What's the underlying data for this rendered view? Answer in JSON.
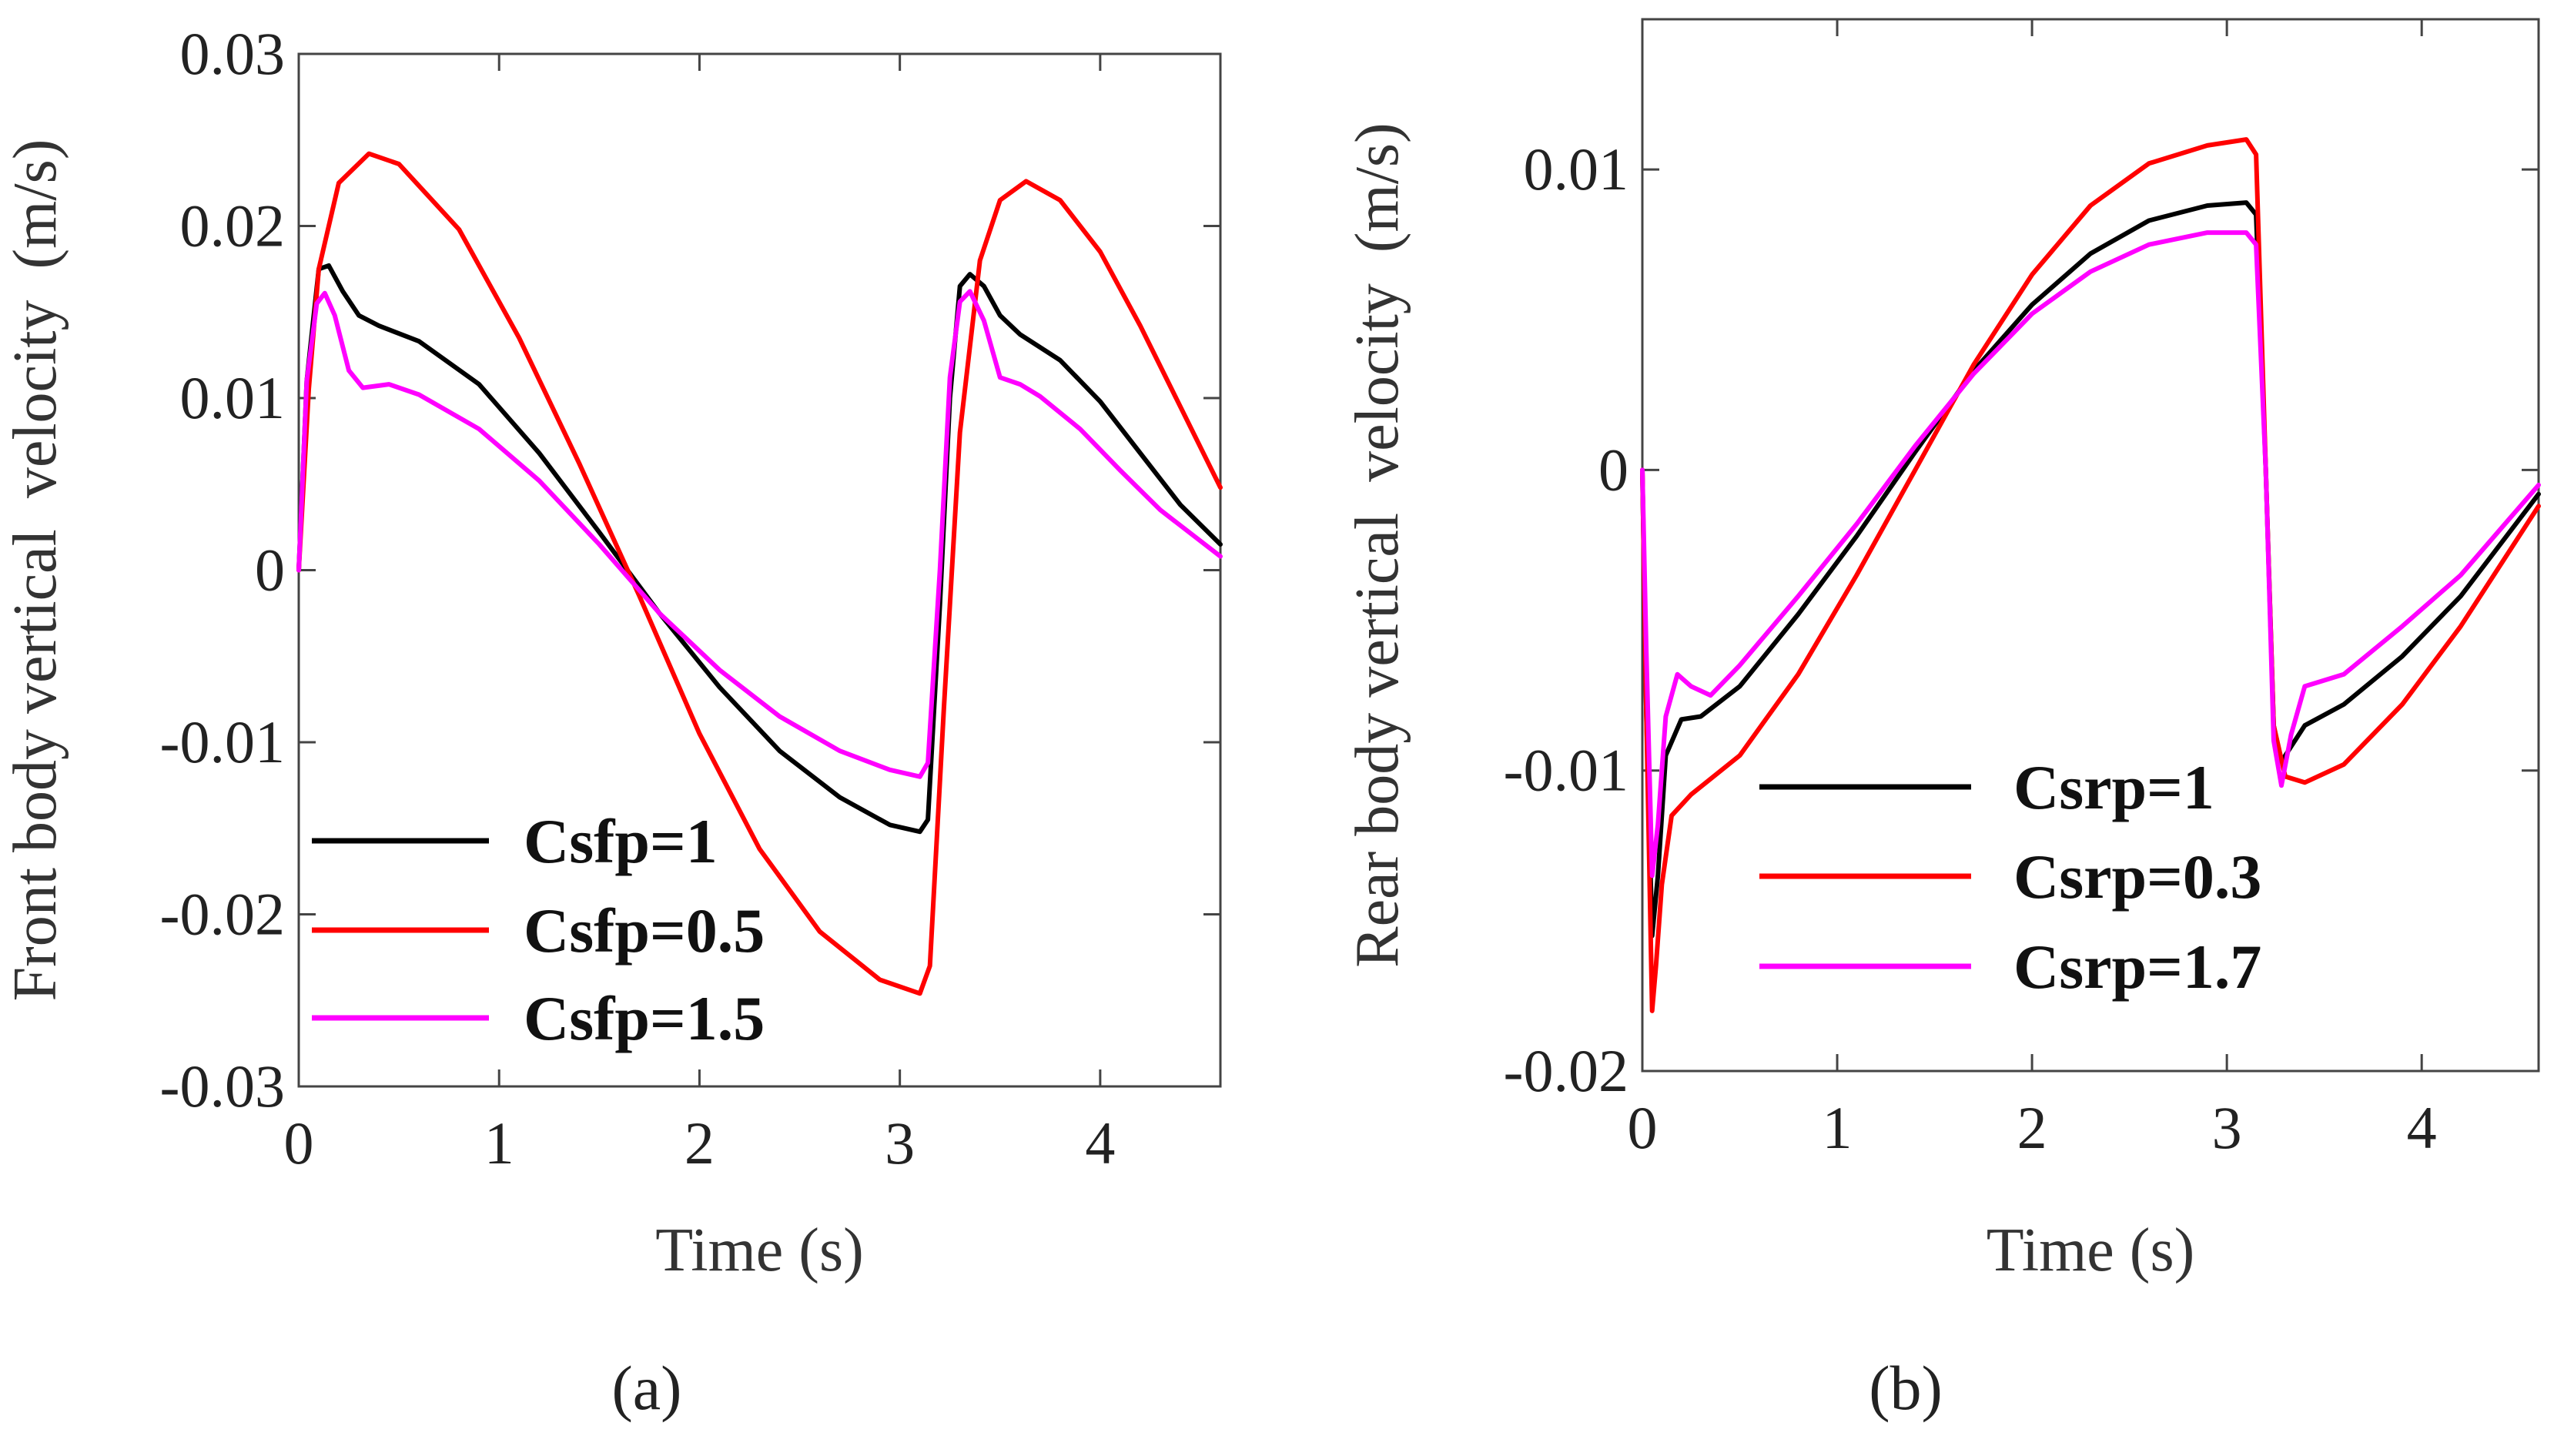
{
  "chart_data": [
    {
      "type": "line",
      "panel_label": "(a)",
      "title": "",
      "xlabel": "Time (s)",
      "ylabel": "Front body vertical  velocity  (m/s)",
      "xlim": [
        0,
        4.6
      ],
      "ylim": [
        -0.03,
        0.03
      ],
      "xticks": [
        0,
        1,
        2,
        3,
        4
      ],
      "xtick_labels": [
        "0",
        "1",
        "2",
        "3",
        "4"
      ],
      "yticks": [
        0.03,
        0.02,
        0.01,
        0,
        -0.01,
        -0.02,
        -0.03
      ],
      "ytick_labels": [
        "0.03",
        "0.02",
        "0.01",
        "0",
        "-0.01",
        "-0.02",
        "-0.03"
      ],
      "legend_position": "bottom-left",
      "series": [
        {
          "name": "Csfp=1",
          "color": "#000000",
          "points": [
            [
              0,
              0
            ],
            [
              0.04,
              0.011
            ],
            [
              0.1,
              0.0175
            ],
            [
              0.15,
              0.0177
            ],
            [
              0.22,
              0.0162
            ],
            [
              0.3,
              0.0148
            ],
            [
              0.4,
              0.0142
            ],
            [
              0.6,
              0.0133
            ],
            [
              0.9,
              0.0108
            ],
            [
              1.2,
              0.0068
            ],
            [
              1.5,
              0.0022
            ],
            [
              1.8,
              -0.0025
            ],
            [
              2.1,
              -0.0068
            ],
            [
              2.4,
              -0.0105
            ],
            [
              2.7,
              -0.0132
            ],
            [
              2.95,
              -0.0148
            ],
            [
              3.1,
              -0.0152
            ],
            [
              3.14,
              -0.0145
            ],
            [
              3.2,
              -0.002
            ],
            [
              3.25,
              0.01
            ],
            [
              3.3,
              0.0165
            ],
            [
              3.35,
              0.0172
            ],
            [
              3.42,
              0.0165
            ],
            [
              3.5,
              0.0148
            ],
            [
              3.6,
              0.0137
            ],
            [
              3.8,
              0.0122
            ],
            [
              4.0,
              0.0098
            ],
            [
              4.2,
              0.0068
            ],
            [
              4.4,
              0.0038
            ],
            [
              4.6,
              0.0015
            ]
          ]
        },
        {
          "name": "Csfp=0.5",
          "color": "#ff0000",
          "points": [
            [
              0,
              0
            ],
            [
              0.05,
              0.0105
            ],
            [
              0.1,
              0.0175
            ],
            [
              0.2,
              0.0225
            ],
            [
              0.35,
              0.0242
            ],
            [
              0.5,
              0.0236
            ],
            [
              0.8,
              0.0198
            ],
            [
              1.1,
              0.0135
            ],
            [
              1.4,
              0.0062
            ],
            [
              1.7,
              -0.0015
            ],
            [
              2.0,
              -0.0095
            ],
            [
              2.3,
              -0.0162
            ],
            [
              2.6,
              -0.021
            ],
            [
              2.9,
              -0.0238
            ],
            [
              3.1,
              -0.0246
            ],
            [
              3.15,
              -0.023
            ],
            [
              3.22,
              -0.008
            ],
            [
              3.3,
              0.008
            ],
            [
              3.4,
              0.018
            ],
            [
              3.5,
              0.0215
            ],
            [
              3.63,
              0.0226
            ],
            [
              3.8,
              0.0215
            ],
            [
              4.0,
              0.0185
            ],
            [
              4.2,
              0.0142
            ],
            [
              4.4,
              0.0095
            ],
            [
              4.6,
              0.0048
            ]
          ]
        },
        {
          "name": "Csfp=1.5",
          "color": "#ff00ff",
          "points": [
            [
              0,
              0
            ],
            [
              0.04,
              0.011
            ],
            [
              0.09,
              0.0155
            ],
            [
              0.13,
              0.0161
            ],
            [
              0.18,
              0.0148
            ],
            [
              0.25,
              0.0116
            ],
            [
              0.32,
              0.0106
            ],
            [
              0.45,
              0.0108
            ],
            [
              0.6,
              0.0102
            ],
            [
              0.9,
              0.0082
            ],
            [
              1.2,
              0.0052
            ],
            [
              1.5,
              0.0015
            ],
            [
              1.8,
              -0.0025
            ],
            [
              2.1,
              -0.0058
            ],
            [
              2.4,
              -0.0085
            ],
            [
              2.7,
              -0.0105
            ],
            [
              2.95,
              -0.0116
            ],
            [
              3.1,
              -0.012
            ],
            [
              3.14,
              -0.0112
            ],
            [
              3.2,
              0.0
            ],
            [
              3.25,
              0.0112
            ],
            [
              3.3,
              0.0156
            ],
            [
              3.35,
              0.0162
            ],
            [
              3.42,
              0.0145
            ],
            [
              3.5,
              0.0112
            ],
            [
              3.6,
              0.0108
            ],
            [
              3.7,
              0.0101
            ],
            [
              3.9,
              0.0082
            ],
            [
              4.1,
              0.0058
            ],
            [
              4.3,
              0.0035
            ],
            [
              4.6,
              0.0008
            ]
          ]
        }
      ]
    },
    {
      "type": "line",
      "panel_label": "(b)",
      "title": "",
      "xlabel": "Time (s)",
      "ylabel": "Rear body vertical  velocity  (m/s)",
      "xlim": [
        0,
        4.6
      ],
      "ylim": [
        -0.02,
        0.015
      ],
      "xticks": [
        0,
        1,
        2,
        3,
        4
      ],
      "xtick_labels": [
        "0",
        "1",
        "2",
        "3",
        "4"
      ],
      "yticks": [
        0.01,
        0,
        -0.01,
        -0.02
      ],
      "ytick_labels": [
        "0.01",
        "0",
        "-0.01",
        "-0.02"
      ],
      "legend_position": "bottom-left",
      "series": [
        {
          "name": "Csrp=1",
          "color": "#000000",
          "points": [
            [
              0,
              0
            ],
            [
              0.02,
              -0.008
            ],
            [
              0.05,
              -0.0155
            ],
            [
              0.08,
              -0.0135
            ],
            [
              0.12,
              -0.0095
            ],
            [
              0.2,
              -0.0083
            ],
            [
              0.3,
              -0.0082
            ],
            [
              0.5,
              -0.0072
            ],
            [
              0.8,
              -0.0048
            ],
            [
              1.1,
              -0.0022
            ],
            [
              1.4,
              0.0006
            ],
            [
              1.7,
              0.0033
            ],
            [
              2.0,
              0.0055
            ],
            [
              2.3,
              0.0072
            ],
            [
              2.6,
              0.0083
            ],
            [
              2.9,
              0.0088
            ],
            [
              3.1,
              0.0089
            ],
            [
              3.15,
              0.0085
            ],
            [
              3.2,
              0.0
            ],
            [
              3.24,
              -0.0085
            ],
            [
              3.28,
              -0.0097
            ],
            [
              3.33,
              -0.0092
            ],
            [
              3.4,
              -0.0085
            ],
            [
              3.6,
              -0.0078
            ],
            [
              3.9,
              -0.0062
            ],
            [
              4.2,
              -0.0042
            ],
            [
              4.6,
              -0.0008
            ]
          ]
        },
        {
          "name": "Csrp=0.3",
          "color": "#ff0000",
          "points": [
            [
              0,
              0
            ],
            [
              0.02,
              -0.008
            ],
            [
              0.05,
              -0.018
            ],
            [
              0.07,
              -0.0165
            ],
            [
              0.1,
              -0.0138
            ],
            [
              0.15,
              -0.0115
            ],
            [
              0.25,
              -0.0108
            ],
            [
              0.5,
              -0.0095
            ],
            [
              0.8,
              -0.0068
            ],
            [
              1.1,
              -0.0035
            ],
            [
              1.4,
              0.0
            ],
            [
              1.7,
              0.0035
            ],
            [
              2.0,
              0.0065
            ],
            [
              2.3,
              0.0088
            ],
            [
              2.6,
              0.0102
            ],
            [
              2.9,
              0.0108
            ],
            [
              3.1,
              0.011
            ],
            [
              3.15,
              0.0105
            ],
            [
              3.2,
              0.0
            ],
            [
              3.24,
              -0.0085
            ],
            [
              3.3,
              -0.0102
            ],
            [
              3.4,
              -0.0104
            ],
            [
              3.6,
              -0.0098
            ],
            [
              3.9,
              -0.0078
            ],
            [
              4.2,
              -0.0052
            ],
            [
              4.6,
              -0.0012
            ]
          ]
        },
        {
          "name": "Csrp=1.7",
          "color": "#ff00ff",
          "points": [
            [
              0,
              0
            ],
            [
              0.02,
              -0.006
            ],
            [
              0.05,
              -0.0135
            ],
            [
              0.08,
              -0.0118
            ],
            [
              0.12,
              -0.0082
            ],
            [
              0.18,
              -0.0068
            ],
            [
              0.25,
              -0.0072
            ],
            [
              0.35,
              -0.0075
            ],
            [
              0.5,
              -0.0065
            ],
            [
              0.8,
              -0.0042
            ],
            [
              1.1,
              -0.0018
            ],
            [
              1.4,
              0.0008
            ],
            [
              1.7,
              0.0032
            ],
            [
              2.0,
              0.0052
            ],
            [
              2.3,
              0.0066
            ],
            [
              2.6,
              0.0075
            ],
            [
              2.9,
              0.0079
            ],
            [
              3.1,
              0.0079
            ],
            [
              3.15,
              0.0075
            ],
            [
              3.2,
              0.0
            ],
            [
              3.24,
              -0.009
            ],
            [
              3.28,
              -0.0105
            ],
            [
              3.33,
              -0.0088
            ],
            [
              3.4,
              -0.0072
            ],
            [
              3.6,
              -0.0068
            ],
            [
              3.9,
              -0.0052
            ],
            [
              4.2,
              -0.0035
            ],
            [
              4.6,
              -0.0005
            ]
          ]
        }
      ]
    }
  ]
}
